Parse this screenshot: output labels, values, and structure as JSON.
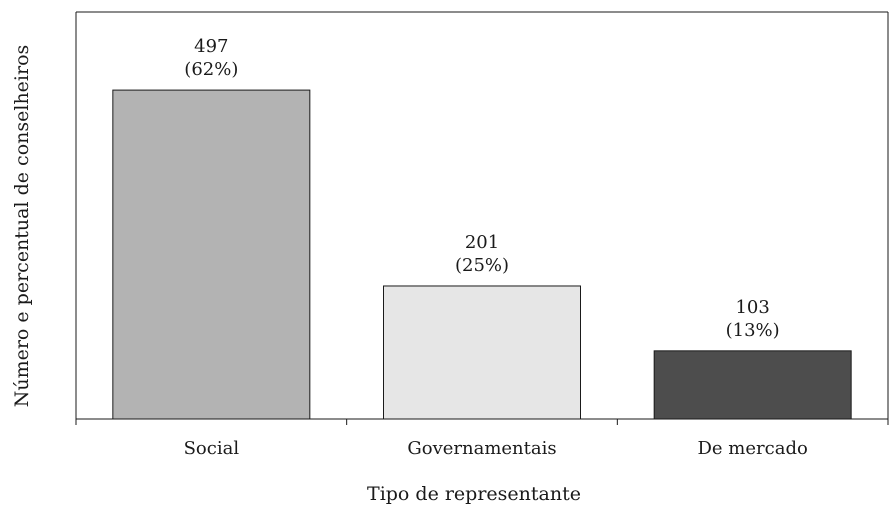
{
  "chart_data": {
    "type": "bar",
    "xlabel": "Tipo de representante",
    "ylabel": "Número e percentual de conselheiros",
    "categories": [
      "Social",
      "Governamentais",
      "De mercado"
    ],
    "values": [
      497,
      201,
      103
    ],
    "value_labels": [
      "497",
      "201",
      "103"
    ],
    "percent_labels": [
      "(62%)",
      "(25%)",
      "(13%)"
    ],
    "bar_colors": [
      "#b3b3b3",
      "#e6e6e6",
      "#4d4d4d"
    ],
    "ylim": [
      0,
      615
    ],
    "grid": false,
    "legend": "none"
  }
}
